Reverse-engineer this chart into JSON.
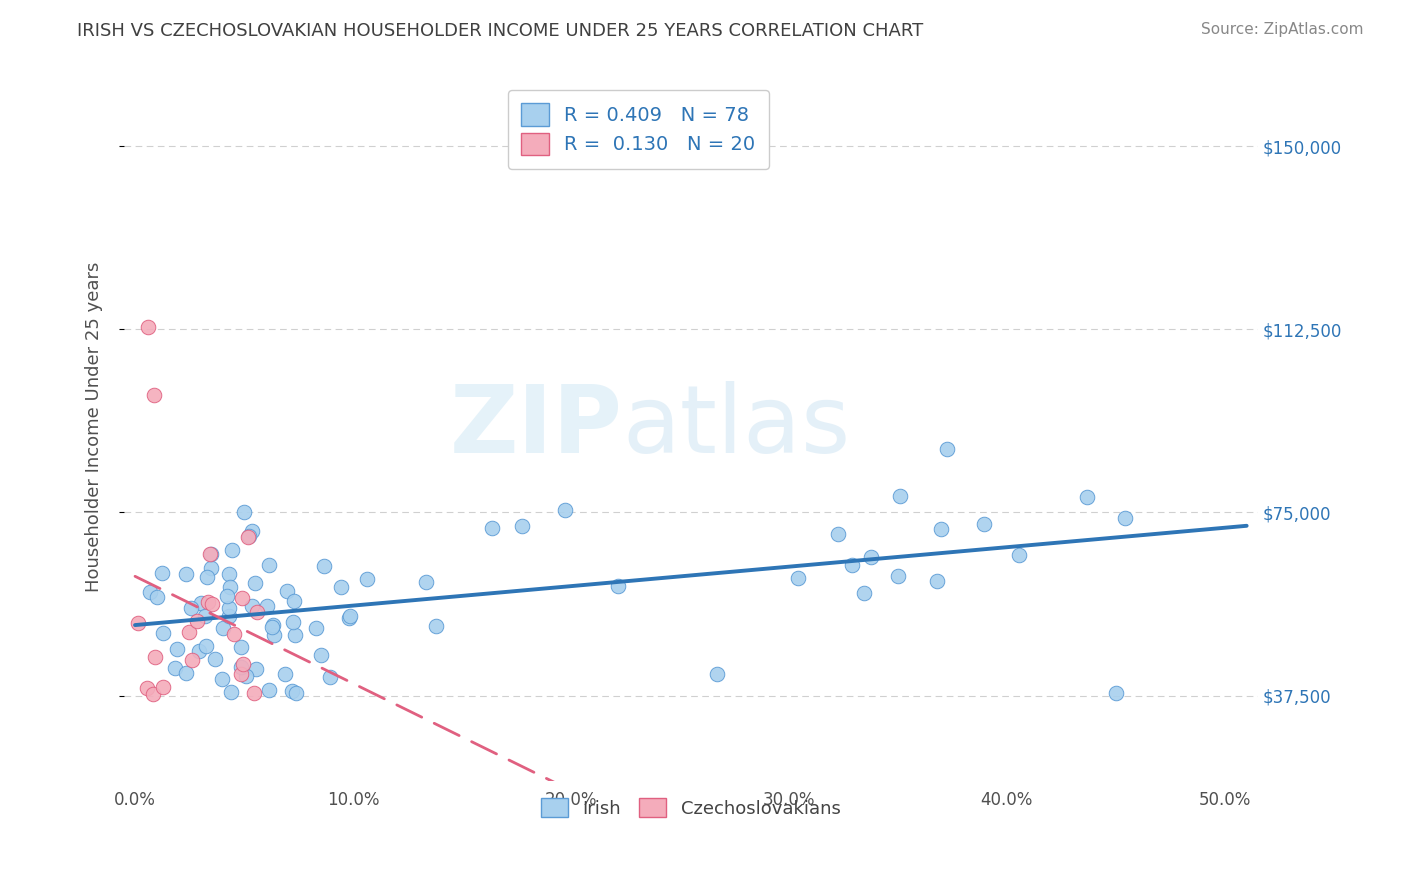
{
  "title": "IRISH VS CZECHOSLOVAKIAN HOUSEHOLDER INCOME UNDER 25 YEARS CORRELATION CHART",
  "source": "Source: ZipAtlas.com",
  "xlabel_vals": [
    0.0,
    10.0,
    20.0,
    30.0,
    40.0,
    50.0
  ],
  "ylabel_ticks": [
    "$37,500",
    "$75,000",
    "$112,500",
    "$150,000"
  ],
  "ylabel_vals": [
    37500,
    75000,
    112500,
    150000
  ],
  "xlim": [
    -0.5,
    51.5
  ],
  "ylim": [
    20000,
    165000
  ],
  "ylabel": "Householder Income Under 25 years",
  "legend_irish": "Irish",
  "legend_czech": "Czechoslovakians",
  "R_irish": 0.409,
  "N_irish": 78,
  "R_czech": 0.13,
  "N_czech": 20,
  "irish_color": "#A8D0EE",
  "irish_edge_color": "#5B9BD5",
  "irish_line_color": "#2E75B6",
  "czech_color": "#F4ACBB",
  "czech_edge_color": "#E06080",
  "czech_line_color": "#E06080",
  "watermark_zip": "ZIP",
  "watermark_atlas": "atlas",
  "background_color": "#FFFFFF",
  "grid_color": "#D0D0D0",
  "title_color": "#404040",
  "ylabel_color": "#505050",
  "tick_color": "#505050",
  "right_tick_color": "#2E75B6",
  "source_color": "#888888",
  "irish_trend_intercept": 52000,
  "irish_trend_slope": 460,
  "czech_trend_intercept": 46000,
  "czech_trend_slope": 2100
}
